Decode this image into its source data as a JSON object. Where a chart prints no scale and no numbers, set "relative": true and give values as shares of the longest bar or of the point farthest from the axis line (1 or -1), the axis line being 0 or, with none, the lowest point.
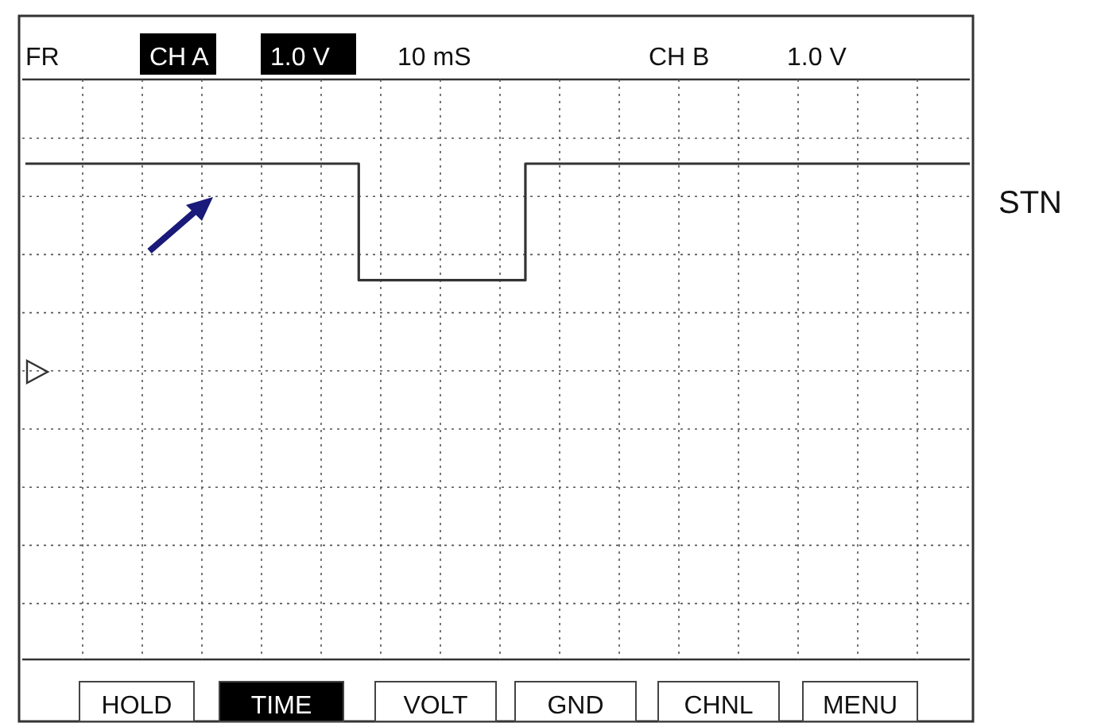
{
  "chart_data": {
    "type": "step",
    "relative": true,
    "grid": true,
    "categories": [
      null,
      null,
      null,
      null,
      null,
      null,
      null,
      null,
      null,
      null,
      null,
      null,
      null,
      null,
      null,
      null,
      null,
      null
    ],
    "series": [
      {
        "name": "STN",
        "color": "#333333",
        "values": [
          1,
          1,
          1,
          1,
          1,
          1,
          0.44,
          0.44,
          0.44,
          1,
          1,
          1,
          1,
          1,
          1,
          1,
          1,
          1
        ]
      }
    ],
    "annotations": [
      "FR",
      "CH A",
      "1.0 V",
      "10 mS",
      "CH B",
      "1.0 V",
      "HOLD",
      "TIME",
      "VOLT",
      "GND",
      "CHNL",
      "MENU"
    ]
  }
}
